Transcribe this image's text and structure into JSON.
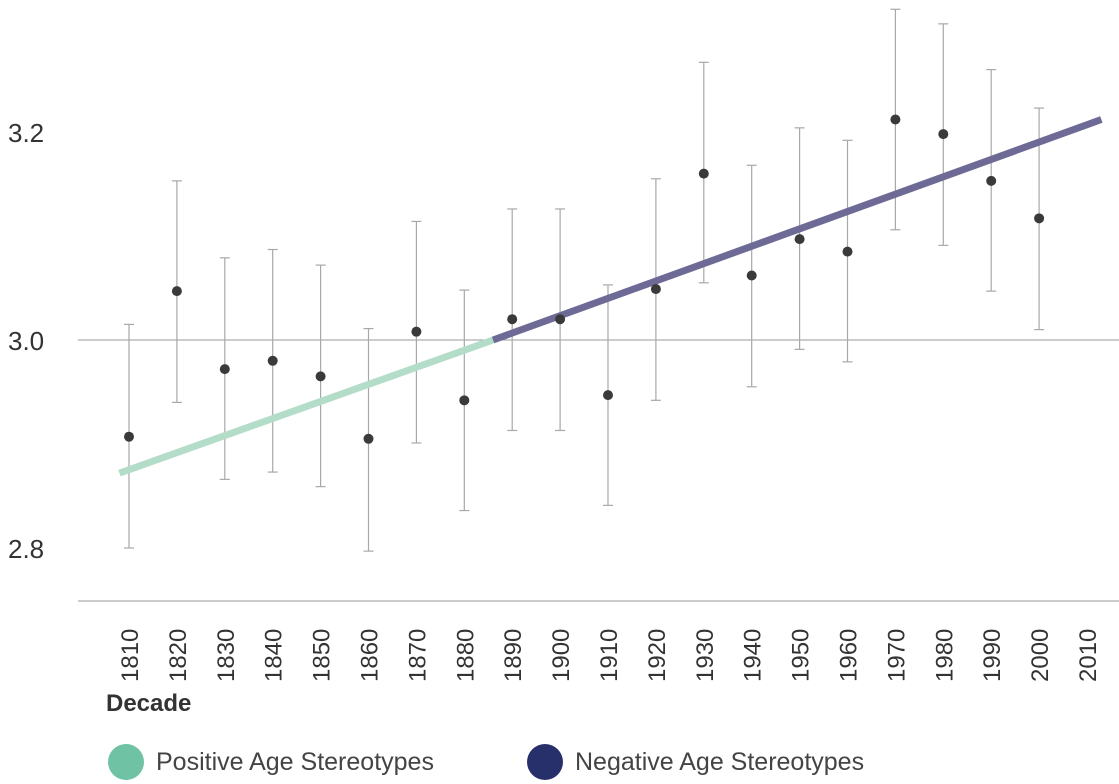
{
  "chart_data": {
    "type": "scatter",
    "xlabel": "Decade",
    "ylabel": "",
    "title": "",
    "ylim": [
      2.74,
      3.32
    ],
    "x_categories": [
      "1810",
      "1820",
      "1830",
      "1840",
      "1850",
      "1860",
      "1870",
      "1880",
      "1890",
      "1900",
      "1910",
      "1920",
      "1930",
      "1940",
      "1950",
      "1960",
      "1970",
      "1980",
      "1990",
      "2000",
      "2010"
    ],
    "y_ticks": [
      "2.8",
      "3.0",
      "3.2"
    ],
    "reference_lines": [
      3.0
    ],
    "points": [
      {
        "x": "1810",
        "y": 2.907,
        "lower": 2.8,
        "upper": 3.015
      },
      {
        "x": "1820",
        "y": 3.047,
        "lower": 2.94,
        "upper": 3.153
      },
      {
        "x": "1830",
        "y": 2.972,
        "lower": 2.866,
        "upper": 3.079
      },
      {
        "x": "1840",
        "y": 2.98,
        "lower": 2.873,
        "upper": 3.087
      },
      {
        "x": "1850",
        "y": 2.965,
        "lower": 2.859,
        "upper": 3.072
      },
      {
        "x": "1860",
        "y": 2.905,
        "lower": 2.797,
        "upper": 3.011
      },
      {
        "x": "1870",
        "y": 3.008,
        "lower": 2.901,
        "upper": 3.114
      },
      {
        "x": "1880",
        "y": 2.942,
        "lower": 2.836,
        "upper": 3.048
      },
      {
        "x": "1890",
        "y": 3.02,
        "lower": 2.913,
        "upper": 3.126
      },
      {
        "x": "1900",
        "y": 3.02,
        "lower": 2.913,
        "upper": 3.126
      },
      {
        "x": "1910",
        "y": 2.947,
        "lower": 2.841,
        "upper": 3.053
      },
      {
        "x": "1920",
        "y": 3.049,
        "lower": 2.942,
        "upper": 3.155
      },
      {
        "x": "1930",
        "y": 3.16,
        "lower": 3.055,
        "upper": 3.267
      },
      {
        "x": "1940",
        "y": 3.062,
        "lower": 2.955,
        "upper": 3.168
      },
      {
        "x": "1950",
        "y": 3.097,
        "lower": 2.991,
        "upper": 3.204
      },
      {
        "x": "1960",
        "y": 3.085,
        "lower": 2.979,
        "upper": 3.192
      },
      {
        "x": "1970",
        "y": 3.212,
        "lower": 3.106,
        "upper": 3.318
      },
      {
        "x": "1980",
        "y": 3.198,
        "lower": 3.091,
        "upper": 3.304
      },
      {
        "x": "1990",
        "y": 3.153,
        "lower": 3.047,
        "upper": 3.26
      },
      {
        "x": "2000",
        "y": 3.117,
        "lower": 3.01,
        "upper": 3.223
      }
    ],
    "trend_segments": [
      {
        "name": "Positive Age Stereotypes",
        "color": "#b3ddc9",
        "legend_color": "#6fc2a3",
        "x_start": 1808,
        "x_end": 1886,
        "y_start": 2.872,
        "y_end": 3.0
      },
      {
        "name": "Negative Age Stereotypes",
        "color": "#6e6a96",
        "legend_color": "#27306b",
        "x_start": 1886,
        "x_end": 2013,
        "y_start": 3.0,
        "y_end": 3.212
      }
    ],
    "grid": false,
    "legend_position": "bottom"
  },
  "legend": {
    "positive_label": "Positive Age Stereotypes",
    "negative_label": "Negative Age Stereotypes"
  },
  "axis": {
    "xlabel": "Decade"
  }
}
